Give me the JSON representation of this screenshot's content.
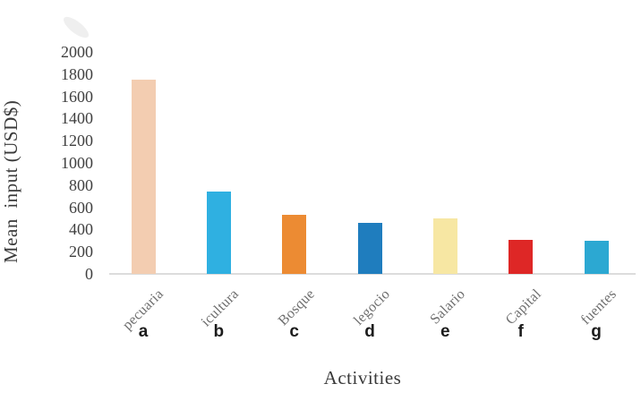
{
  "chart_data": {
    "type": "bar",
    "title": "",
    "xlabel": "Activities",
    "ylabel": "Mean  input (USD$)",
    "categories": [
      "pecuaria",
      "icultura",
      "Bosque",
      "legocio",
      "Salario",
      "Capital",
      "fuentes"
    ],
    "letters": [
      "a",
      "b",
      "c",
      "d",
      "e",
      "f",
      "g"
    ],
    "values": [
      1750,
      740,
      530,
      460,
      500,
      310,
      300
    ],
    "bar_colors": [
      "#f3cdb1",
      "#2fb0e1",
      "#ec8b33",
      "#1f7dbe",
      "#f7e7a3",
      "#de2726",
      "#2ca8d2"
    ],
    "ylim": [
      0,
      2000
    ],
    "yticks": [
      0,
      200,
      400,
      600,
      800,
      1000,
      1200,
      1400,
      1600,
      1800,
      2000
    ],
    "grid": false,
    "legend": "none",
    "axis_line_color": "#dcdcdc",
    "tick_label_color": "#3f3f3f",
    "category_label_color": "#6e6e6e"
  }
}
